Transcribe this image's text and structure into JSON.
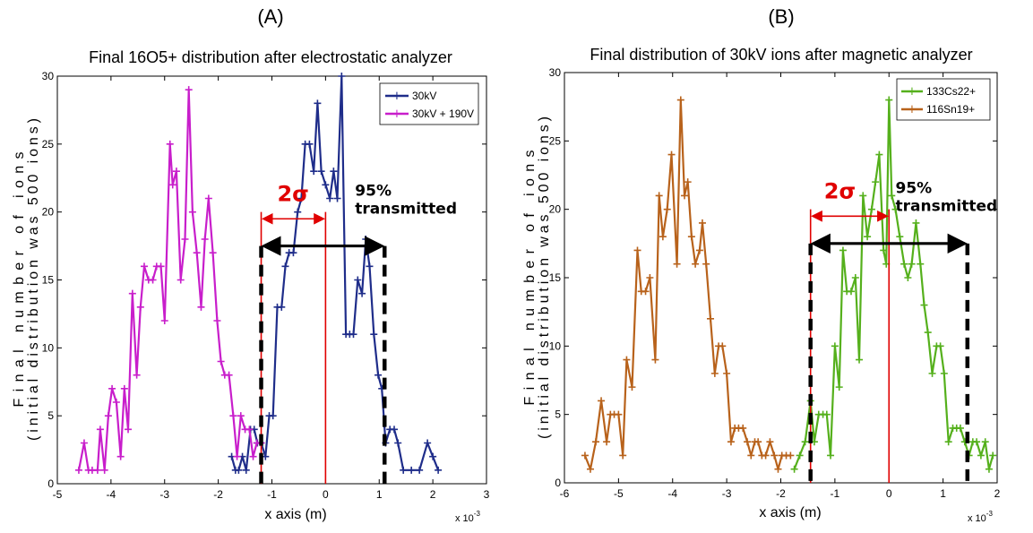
{
  "chart_data": [
    {
      "type": "line",
      "panel_label": "(A)",
      "title": "Final 16O5+ distribution after electrostatic analyzer",
      "xlabel": "x axis (m)",
      "ylabel_line1": "Final number of ions",
      "ylabel_line2": "(initial distribution was 500 ions)",
      "x_exponent": "x 10-3",
      "xlim": [
        -5,
        3
      ],
      "ylim": [
        0,
        30
      ],
      "x_ticks": [
        "-5",
        "-4",
        "-3",
        "-2",
        "-1",
        "0",
        "1",
        "2",
        "3"
      ],
      "y_ticks": [
        "0",
        "5",
        "10",
        "15",
        "20",
        "25",
        "30"
      ],
      "legend_position": "top-right",
      "series": [
        {
          "name": "30kV",
          "color": "#1f2d8a",
          "x": [
            -1.75,
            -1.68,
            -1.62,
            -1.55,
            -1.48,
            -1.4,
            -1.33,
            -1.27,
            -1.2,
            -1.12,
            -1.05,
            -0.98,
            -0.9,
            -0.82,
            -0.75,
            -0.68,
            -0.6,
            -0.52,
            -0.45,
            -0.38,
            -0.3,
            -0.22,
            -0.15,
            -0.08,
            0.0,
            0.08,
            0.15,
            0.22,
            0.3,
            0.38,
            0.45,
            0.52,
            0.6,
            0.68,
            0.75,
            0.82,
            0.9,
            0.98,
            1.05,
            1.12,
            1.2,
            1.28,
            1.35,
            1.45,
            1.6,
            1.75,
            1.9,
            2.0,
            2.1
          ],
          "y": [
            2,
            1,
            1,
            2,
            1,
            4,
            4,
            3,
            3,
            2,
            5,
            5,
            13,
            13,
            16,
            17,
            17,
            20,
            21,
            25,
            25,
            23,
            28,
            23,
            22,
            21,
            23,
            21,
            30,
            11,
            11,
            11,
            15,
            14,
            18,
            16,
            11,
            8,
            7,
            3,
            4,
            4,
            3,
            1,
            1,
            1,
            3,
            2,
            1
          ]
        },
        {
          "name": "30kV + 190V",
          "color": "#c81ecb",
          "x": [
            -4.6,
            -4.5,
            -4.42,
            -4.35,
            -4.25,
            -4.2,
            -4.12,
            -4.05,
            -3.98,
            -3.9,
            -3.82,
            -3.75,
            -3.68,
            -3.6,
            -3.52,
            -3.45,
            -3.38,
            -3.3,
            -3.22,
            -3.15,
            -3.07,
            -3.0,
            -2.9,
            -2.85,
            -2.78,
            -2.7,
            -2.62,
            -2.55,
            -2.48,
            -2.4,
            -2.32,
            -2.25,
            -2.18,
            -2.1,
            -2.02,
            -1.95,
            -1.88,
            -1.8,
            -1.72,
            -1.65,
            -1.58,
            -1.5,
            -1.42,
            -1.35,
            -1.28,
            -1.2
          ],
          "y": [
            1,
            3,
            1,
            1,
            1,
            4,
            1,
            5,
            7,
            6,
            2,
            7,
            4,
            14,
            8,
            13,
            16,
            15,
            15,
            16,
            16,
            12,
            25,
            22,
            23,
            15,
            18,
            29,
            20,
            17,
            13,
            18,
            21,
            17,
            12,
            9,
            8,
            8,
            5,
            2,
            5,
            4,
            4,
            2,
            3,
            3
          ]
        }
      ],
      "annotations": {
        "sigma": "2σ",
        "transmitted_line1": "95%",
        "transmitted_line2": "transmitted"
      },
      "guides": {
        "red_vertical_x": [
          -1.2,
          0.0
        ],
        "black_dashed_x": [
          -1.2,
          1.1
        ],
        "sigma_arrow_y": 19.5,
        "transmit_arrow_y": 17.5
      }
    },
    {
      "type": "line",
      "panel_label": "(B)",
      "title": "Final distribution of 30kV ions after magnetic analyzer",
      "xlabel": "x axis (m)",
      "ylabel_line1": "Final number of ions",
      "ylabel_line2": "(initial distribution was 500 ions)",
      "x_exponent": "x 10-3",
      "xlim": [
        -6,
        2
      ],
      "ylim": [
        0,
        30
      ],
      "x_ticks": [
        "-6",
        "-5",
        "-4",
        "-3",
        "-2",
        "-1",
        "0",
        "1",
        "2"
      ],
      "y_ticks": [
        "0",
        "5",
        "10",
        "15",
        "20",
        "25",
        "30"
      ],
      "legend_position": "top-right",
      "series": [
        {
          "name": "133Cs22+",
          "color": "#55b01c",
          "x": [
            -1.75,
            -1.65,
            -1.55,
            -1.45,
            -1.38,
            -1.3,
            -1.22,
            -1.15,
            -1.08,
            -1.0,
            -0.92,
            -0.85,
            -0.78,
            -0.7,
            -0.62,
            -0.55,
            -0.48,
            -0.4,
            -0.32,
            -0.25,
            -0.18,
            -0.1,
            -0.05,
            0.0,
            0.05,
            0.12,
            0.2,
            0.28,
            0.35,
            0.42,
            0.5,
            0.58,
            0.65,
            0.72,
            0.8,
            0.88,
            0.95,
            1.02,
            1.1,
            1.18,
            1.25,
            1.32,
            1.4,
            1.48,
            1.55,
            1.62,
            1.7,
            1.78,
            1.85,
            1.92
          ],
          "y": [
            1,
            2,
            3,
            6,
            3,
            5,
            5,
            5,
            2,
            10,
            7,
            17,
            14,
            14,
            15,
            9,
            21,
            18,
            20,
            22,
            24,
            17,
            16,
            28,
            21,
            20,
            18,
            16,
            15,
            16,
            19,
            16,
            13,
            11,
            8,
            10,
            10,
            8,
            3,
            4,
            4,
            4,
            3,
            2,
            3,
            3,
            2,
            3,
            1,
            2
          ]
        },
        {
          "name": "116Sn19+",
          "color": "#b8621b",
          "x": [
            -5.62,
            -5.52,
            -5.42,
            -5.32,
            -5.22,
            -5.15,
            -5.08,
            -5.0,
            -4.92,
            -4.85,
            -4.75,
            -4.65,
            -4.58,
            -4.5,
            -4.42,
            -4.32,
            -4.25,
            -4.18,
            -4.1,
            -4.02,
            -3.92,
            -3.85,
            -3.78,
            -3.72,
            -3.65,
            -3.58,
            -3.5,
            -3.45,
            -3.38,
            -3.3,
            -3.22,
            -3.15,
            -3.08,
            -3.0,
            -2.92,
            -2.85,
            -2.78,
            -2.7,
            -2.62,
            -2.55,
            -2.48,
            -2.42,
            -2.35,
            -2.28,
            -2.2,
            -2.12,
            -2.05,
            -1.98,
            -1.9,
            -1.82
          ],
          "y": [
            2,
            1,
            3,
            6,
            3,
            5,
            5,
            5,
            2,
            9,
            7,
            17,
            14,
            14,
            15,
            9,
            21,
            18,
            20,
            24,
            16,
            28,
            21,
            22,
            18,
            16,
            17,
            19,
            16,
            12,
            8,
            10,
            10,
            8,
            3,
            4,
            4,
            4,
            3,
            2,
            3,
            3,
            2,
            2,
            3,
            2,
            1,
            2,
            2,
            2
          ]
        }
      ],
      "annotations": {
        "sigma": "2σ",
        "transmitted_line1": "95%",
        "transmitted_line2": "transmitted"
      },
      "guides": {
        "red_vertical_x": [
          -1.45,
          0.0
        ],
        "black_dashed_x": [
          -1.45,
          1.45
        ],
        "sigma_arrow_y": 19.5,
        "transmit_arrow_y": 17.5
      }
    }
  ]
}
